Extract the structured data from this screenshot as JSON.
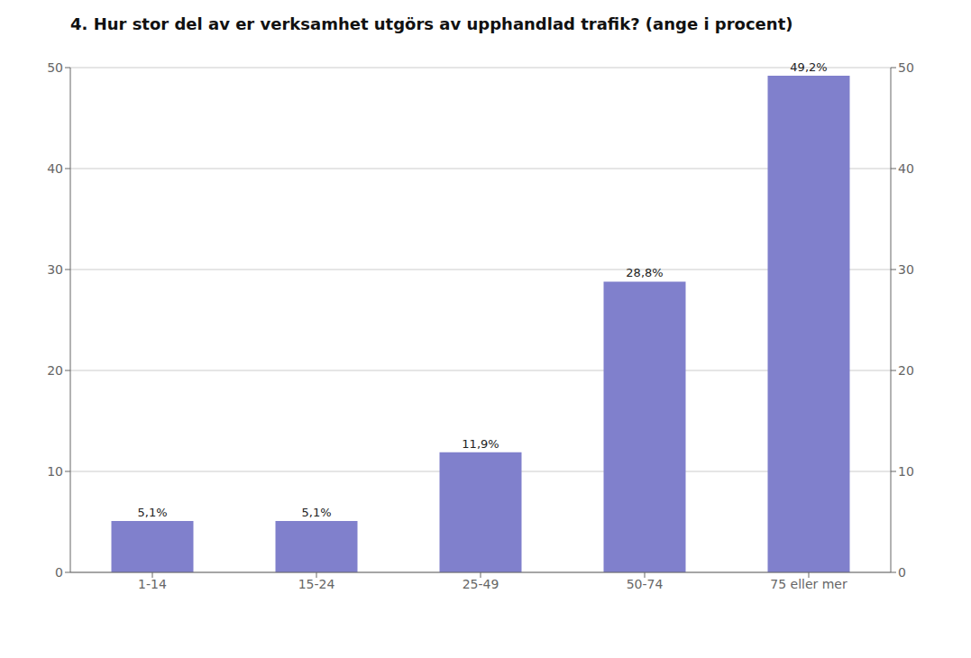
{
  "chart_data": {
    "type": "bar",
    "title": "4. Hur stor del av er verksamhet utgörs av upphandlad trafik? (ange i procent)",
    "categories": [
      "1-14",
      "15-24",
      "25-49",
      "50-74",
      "75 eller mer"
    ],
    "values": [
      5.1,
      5.1,
      11.9,
      28.8,
      49.2
    ],
    "value_labels": [
      "5,1%",
      "5,1%",
      "11,9%",
      "28,8%",
      "49,2%"
    ],
    "color": "#8080cc",
    "ylim": [
      0,
      50
    ],
    "yticks": [
      0,
      10,
      20,
      30,
      40,
      50
    ],
    "y2lim": [
      0,
      50
    ],
    "y2ticks": [
      0,
      10,
      20,
      30,
      40,
      50
    ],
    "grid": true
  }
}
